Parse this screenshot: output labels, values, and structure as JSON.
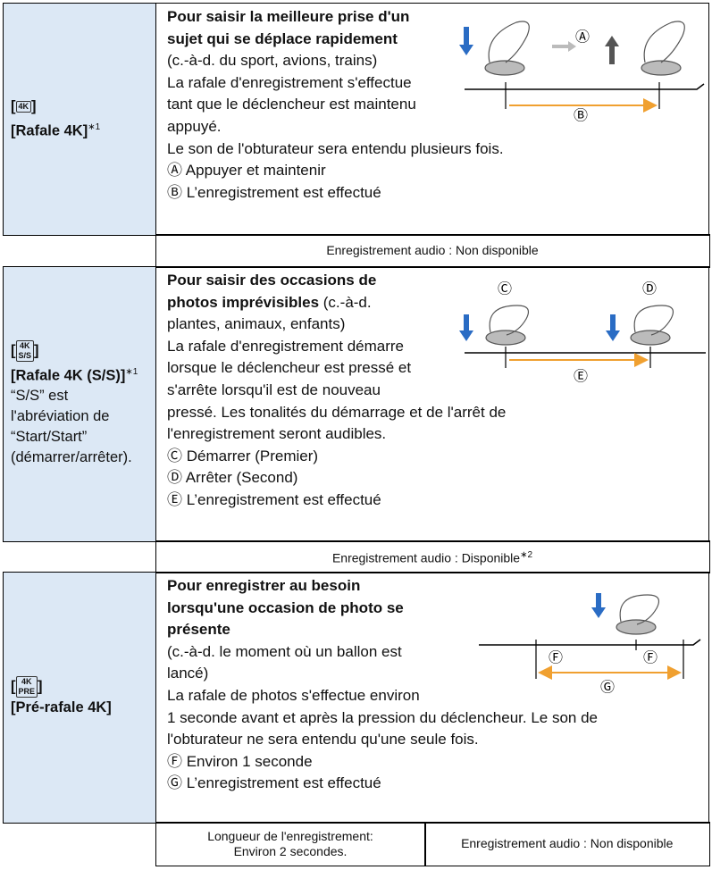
{
  "rows": [
    {
      "bracket_open": "[",
      "icon": "4K",
      "bracket_close": "]",
      "label": [
        "[Rafale 4K]"
      ],
      "sup": "∗1",
      "notes": [],
      "lines": [
        {
          "bold": "Pour saisir la meilleure prise d'un"
        },
        {
          "bold": "sujet qui se déplace rapidement"
        },
        {
          "text": "(c.-à-d. du sport, avions, trains)"
        },
        {
          "text": "La rafale d'enregistrement s'effectue"
        },
        {
          "text": "tant que le déclencheur est maintenu"
        },
        {
          "text": "appuyé."
        },
        {
          "text": "Le son de l'obturateur sera entendu plusieurs fois."
        },
        {
          "text": "Ⓐ Appuyer et maintenir"
        },
        {
          "text": "Ⓑ L’enregistrement est effectué"
        }
      ],
      "diagram_labels": [
        "Ⓐ",
        "Ⓑ"
      ],
      "footer": [
        {
          "text": "Enregistrement audio : Non disponible"
        }
      ]
    },
    {
      "bracket_open": "[",
      "icon": "4K",
      "icon_sub": "S/S",
      "bracket_close": "]",
      "label": [
        "[Rafale 4K (S/S)]"
      ],
      "sup": "∗1",
      "notes": [
        "“S/S” est",
        "l'abréviation de",
        "“Start/Start”",
        "(démarrer/arrêter)."
      ],
      "lines": [
        {
          "bold": "Pour saisir des occasions de"
        },
        {
          "bold": "photos imprévisibles",
          "text": " (c.-à-d."
        },
        {
          "text": "plantes, animaux, enfants)"
        },
        {
          "text": "La rafale d'enregistrement démarre"
        },
        {
          "text": "lorsque le déclencheur est pressé et"
        },
        {
          "text": "s'arrête lorsqu'il est de nouveau"
        },
        {
          "text": "pressé. Les tonalités du démarrage et de l'arrêt de"
        },
        {
          "text": "l'enregistrement seront audibles."
        },
        {
          "text": "Ⓒ Démarrer (Premier)"
        },
        {
          "text": "Ⓓ Arrêter (Second)"
        },
        {
          "text": "Ⓔ L’enregistrement est effectué"
        }
      ],
      "diagram_labels": [
        "Ⓒ",
        "Ⓓ",
        "Ⓔ"
      ],
      "footer": [
        {
          "text": "Enregistrement audio : Disponible",
          "sup": "∗2"
        }
      ]
    },
    {
      "bracket_open": "[",
      "icon": "4K",
      "icon_sub": "PRE",
      "bracket_close": "]",
      "label": [
        "[Pré-rafale 4K]"
      ],
      "notes": [],
      "lines": [
        {
          "bold": "Pour enregistrer au besoin"
        },
        {
          "bold": "lorsqu'une occasion de photo se"
        },
        {
          "bold": "présente"
        },
        {
          "text": "(c.-à-d. le moment où un ballon est"
        },
        {
          "text": "lancé)"
        },
        {
          "text": "La rafale de photos s'effectue environ"
        },
        {
          "text": "1 seconde avant et après la pression du déclencheur. Le son de"
        },
        {
          "text": "l'obturateur ne sera entendu qu'une seule fois."
        },
        {
          "text": "Ⓕ Environ 1 seconde"
        },
        {
          "text": "Ⓖ L’enregistrement est effectué"
        }
      ],
      "diagram_labels": [
        "Ⓕ",
        "Ⓕ",
        "Ⓖ"
      ],
      "footer": [
        {
          "text": "Longueur de l'enregistrement:",
          "text2": "Environ 2 secondes."
        },
        {
          "text": "Enregistrement audio : Non disponible"
        }
      ]
    }
  ]
}
